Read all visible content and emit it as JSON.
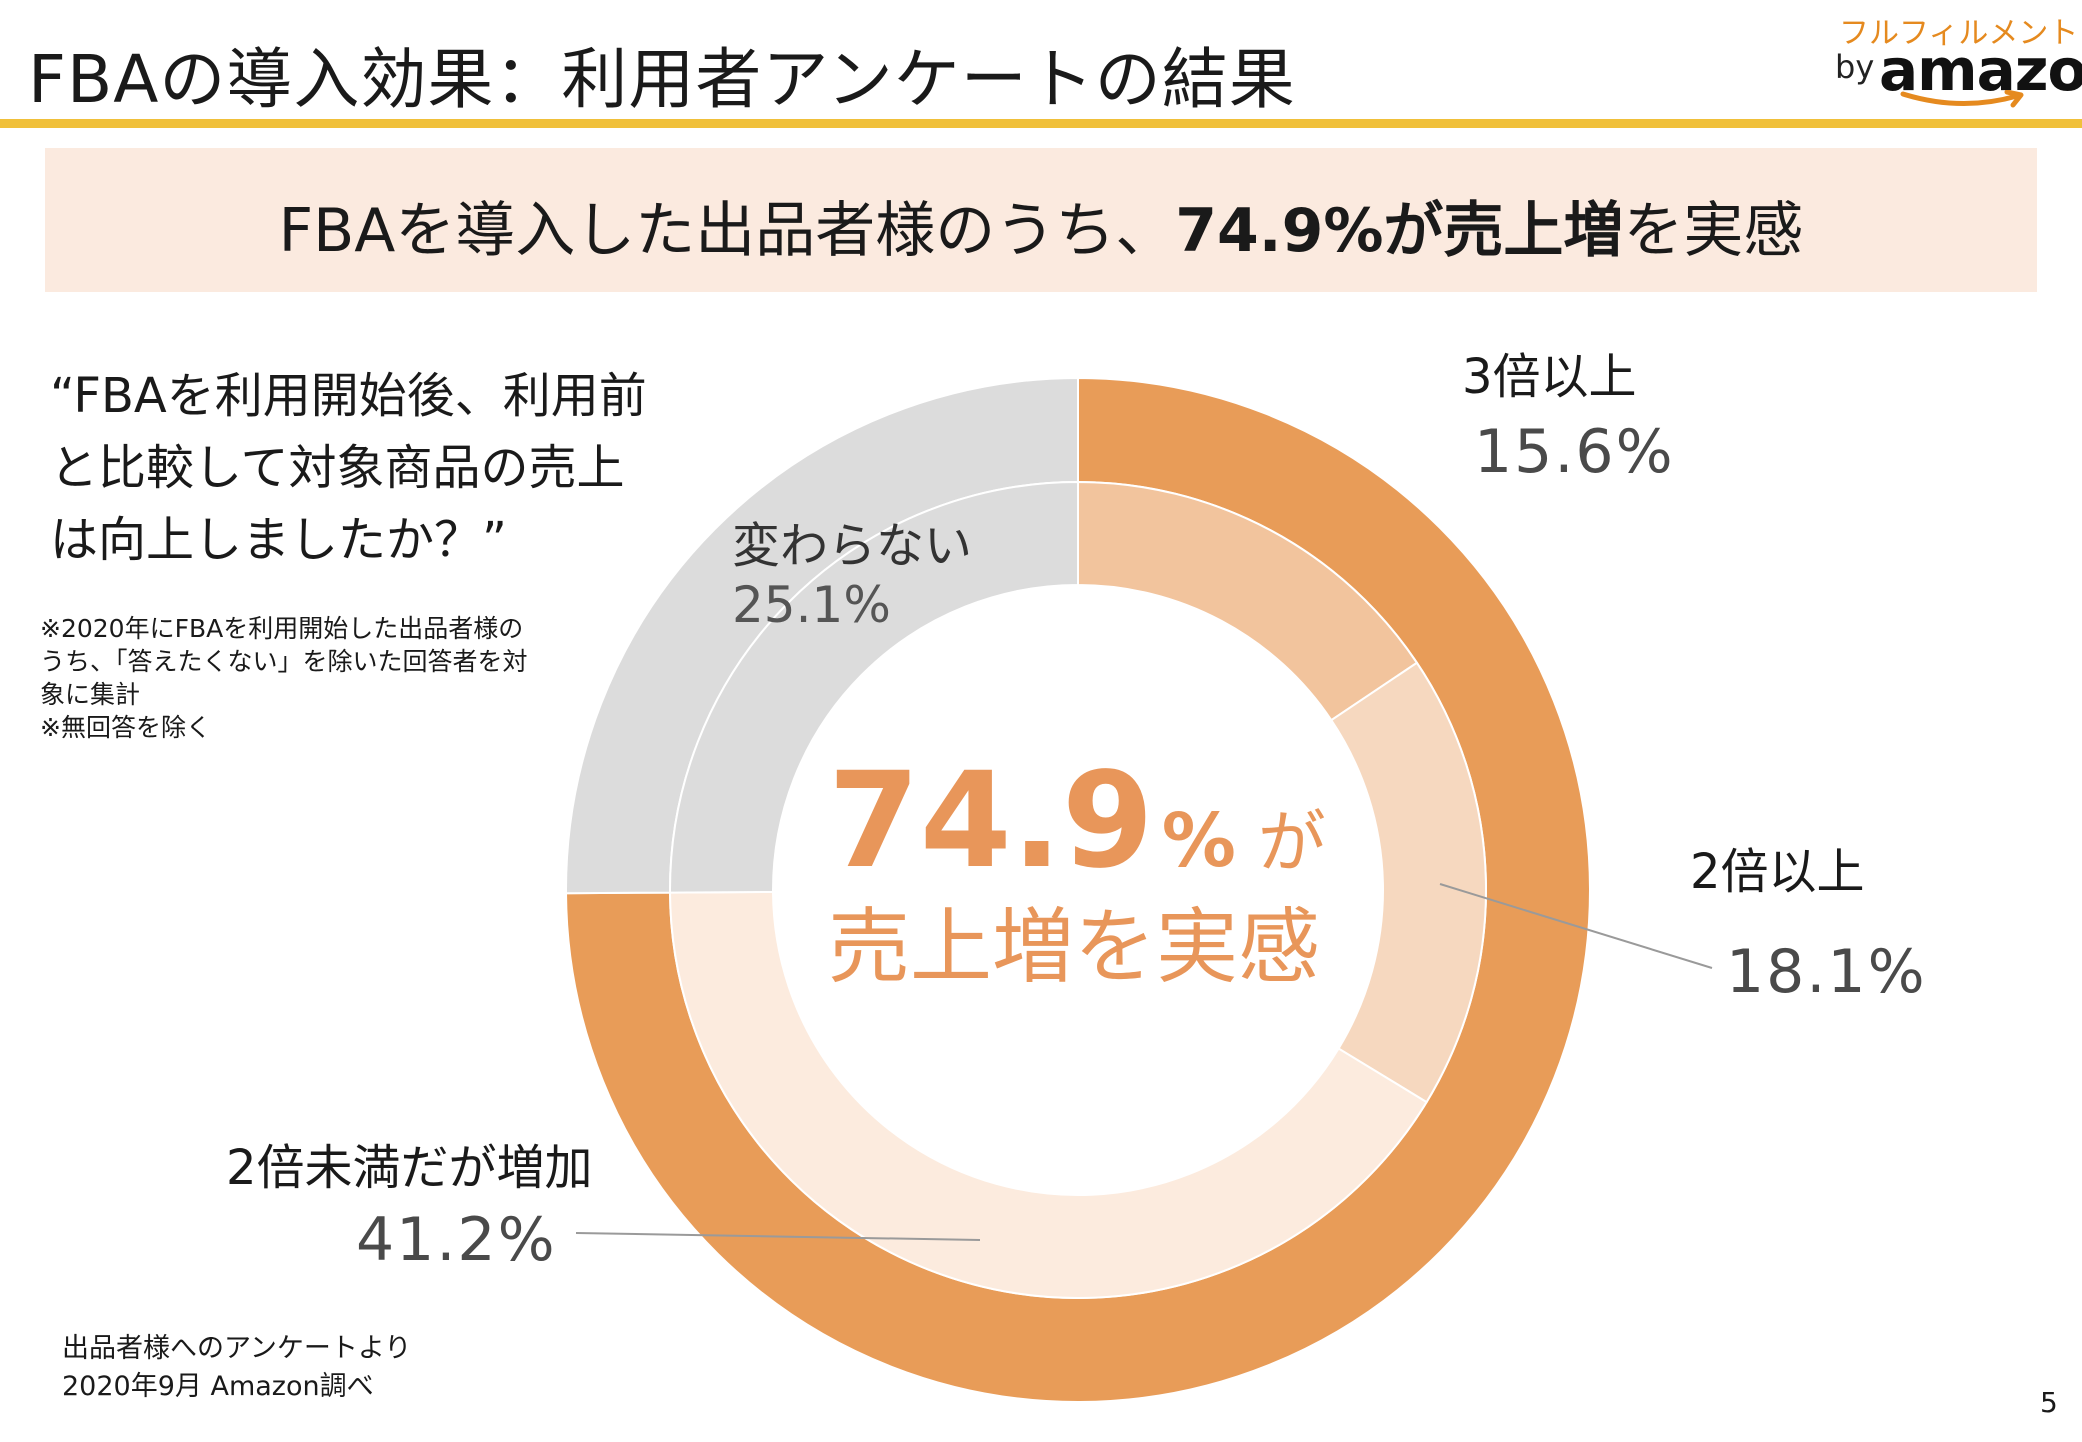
{
  "slide": {
    "title": "FBAの導入効果：利用者アンケートの結果",
    "page_number": "5"
  },
  "logo": {
    "top_text": "フルフィルメント",
    "by_text": "by",
    "brand_text": "amazon"
  },
  "headline": {
    "prefix": "FBAを導入した出品者様のうち、",
    "emphasis": "74.9%が売上増",
    "suffix": "を実感"
  },
  "question": {
    "text": "“FBAを利用開始後、利用前と比較して対象商品の売上は向上しましたか？”"
  },
  "note": {
    "line1": "※2020年にFBAを利用開始した出品者様のうち、「答えたくない」を除いた回答者を対象に集計",
    "line2": "※無回答を除く"
  },
  "source": {
    "line1": "出品者様へのアンケートより",
    "line2": "2020年9月 Amazon調べ"
  },
  "center": {
    "big_number": "74.9",
    "percent_sign": "%",
    "particle": "が",
    "subtitle": "売上増を実感"
  },
  "colors": {
    "accent": "#e89c58",
    "light_1": "#f2c49d",
    "light_2": "#f6d8bf",
    "light_3": "#fcebde",
    "grey": "#dcdcdc",
    "title_rule": "#f0c03a"
  },
  "chart_data": {
    "type": "pie",
    "variant": "nested-donut",
    "title": "",
    "outer_ring": [
      {
        "name": "増加",
        "value": 74.9
      },
      {
        "name": "変わらない",
        "value": 25.1
      }
    ],
    "inner_ring": [
      {
        "name": "3倍以上",
        "value": 15.6,
        "label": "15.6%"
      },
      {
        "name": "2倍以上",
        "value": 18.1,
        "label": "18.1%"
      },
      {
        "name": "2倍未満だが増加",
        "value": 41.2,
        "label": "41.2%"
      },
      {
        "name": "変わらない",
        "value": 25.1,
        "label": "25.1%"
      }
    ],
    "legend": "none",
    "grid": false
  }
}
